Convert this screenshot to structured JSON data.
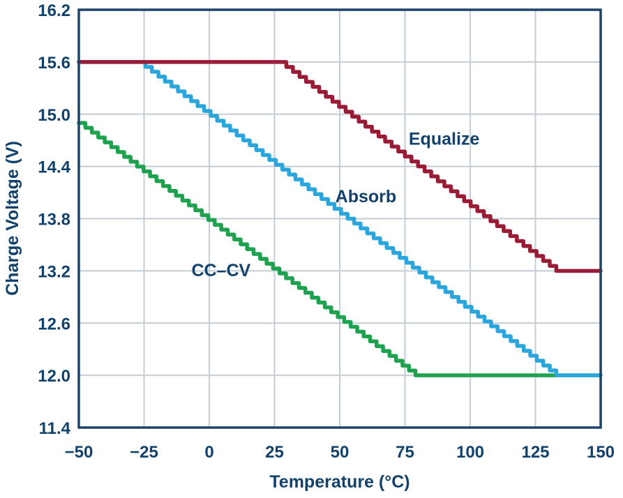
{
  "chart_data": {
    "type": "line",
    "title": "",
    "xlabel": "Temperature (°C)",
    "ylabel": "Charge Voltage (V)",
    "xlim": [
      -50,
      150
    ],
    "ylim": [
      11.4,
      16.2
    ],
    "x_ticks": [
      -50,
      -25,
      0,
      25,
      50,
      75,
      100,
      125,
      150
    ],
    "x_tick_labels": [
      "−50",
      "−25",
      "0",
      "25",
      "50",
      "75",
      "100",
      "125",
      "150"
    ],
    "y_ticks": [
      11.4,
      12.0,
      12.6,
      13.2,
      13.8,
      14.4,
      15.0,
      15.6,
      16.2
    ],
    "y_tick_labels": [
      "11.4",
      "12.0",
      "12.6",
      "13.2",
      "13.8",
      "14.4",
      "15.0",
      "15.6",
      "16.2"
    ],
    "grid": true,
    "legend_position": "inline-labels",
    "line_style": "stepped",
    "step_width_degC": 2.5,
    "slope_mV_per_degC": -22.5,
    "series": [
      {
        "name": "CC–CV",
        "color": "#1fa24f",
        "points": [
          [
            -50,
            14.9
          ],
          [
            79,
            12.0
          ],
          [
            150,
            12.0
          ]
        ],
        "label_anchor": [
          4.5,
          13.21
        ]
      },
      {
        "name": "Absorb",
        "color": "#2aa6dc",
        "points": [
          [
            -50,
            15.6
          ],
          [
            -27,
            15.6
          ],
          [
            133,
            12.0
          ],
          [
            150,
            12.0
          ]
        ],
        "label_anchor": [
          60,
          14.06
        ]
      },
      {
        "name": "Equalize",
        "color": "#9a1b35",
        "points": [
          [
            -50,
            15.6
          ],
          [
            27,
            15.6
          ],
          [
            133,
            13.2
          ],
          [
            150,
            13.2
          ]
        ],
        "label_anchor": [
          90,
          14.72
        ]
      }
    ],
    "colors": {
      "text": "#12426b",
      "grid": "#c4ccd4",
      "frame": "#1c4468",
      "background": "#ffffff"
    }
  }
}
